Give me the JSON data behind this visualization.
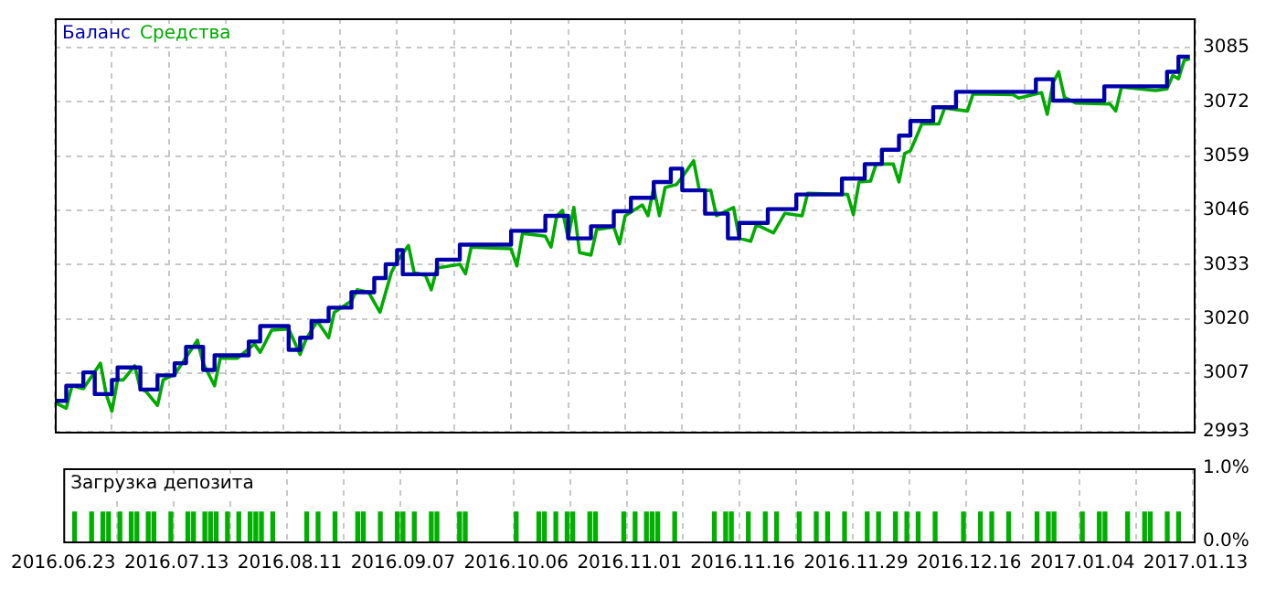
{
  "chart_data": [
    {
      "type": "line",
      "legend": "top left",
      "grid": true,
      "tick_labels": "y",
      "categories": [
        null,
        null,
        null,
        null,
        null,
        null,
        null,
        null,
        null,
        null,
        null,
        null,
        null,
        null,
        null,
        null,
        null,
        null,
        null,
        null,
        null,
        null,
        null,
        null,
        null,
        null,
        null,
        null,
        null,
        null,
        null,
        null,
        null,
        null,
        null,
        null,
        null,
        null,
        null,
        null,
        null,
        null,
        null,
        null,
        null,
        null,
        null,
        null,
        null,
        null,
        null,
        null,
        null,
        null,
        null,
        null,
        null,
        null,
        null,
        null,
        null,
        null,
        null,
        null,
        null,
        null,
        null,
        null,
        null,
        null,
        null,
        null,
        null,
        null,
        null,
        null,
        null,
        null,
        null,
        null,
        null,
        null,
        null,
        null,
        null,
        null,
        null,
        null,
        null,
        null,
        null,
        null,
        null,
        null,
        null,
        null,
        null,
        null,
        null,
        null,
        null,
        null,
        null,
        null,
        null,
        null,
        null,
        null,
        null,
        null,
        null,
        null,
        null,
        null,
        null,
        null,
        null,
        null,
        null,
        null,
        null,
        null,
        null,
        null,
        null,
        null,
        null,
        null,
        null,
        null,
        null,
        null,
        null,
        null,
        null,
        null,
        null,
        null,
        null,
        null,
        null,
        null,
        null,
        null,
        null,
        null,
        null,
        null,
        null,
        null,
        null,
        null,
        null,
        null,
        null,
        null,
        null,
        null,
        null,
        null,
        null,
        null,
        null,
        null,
        null,
        null,
        null,
        null,
        null,
        null,
        null,
        null,
        null,
        null,
        null,
        null,
        null,
        null,
        null,
        null,
        null,
        null,
        null,
        null,
        null,
        null,
        null,
        null,
        null,
        null,
        null,
        null,
        null,
        null,
        null,
        null,
        null,
        null,
        null,
        null,
        null
      ],
      "ylim": [
        2993,
        3092
      ],
      "yticks": [
        2993,
        3007,
        3020,
        3033,
        3046,
        3059,
        3072,
        3085
      ],
      "series": [
        {
          "name": "Баланс",
          "type": "step",
          "color": "#0000aa",
          "values": [
            3000.4,
            3000.4,
            3004.0,
            null,
            3004.0,
            3007.2,
            3007.2,
            3002.0,
            null,
            3002.0,
            3005.4,
            3008.4,
            null,
            null,
            3008.4,
            3003.1,
            null,
            3003.1,
            3006.5,
            null,
            3006.5,
            3009.4,
            3009.4,
            3013.3,
            null,
            3013.3,
            3007.8,
            3007.8,
            3011.3,
            null,
            null,
            null,
            null,
            3011.3,
            3014.6,
            3014.6,
            3018.3,
            null,
            null,
            null,
            3018.3,
            3012.6,
            3012.6,
            3015.5,
            3015.5,
            3019.5,
            null,
            3019.5,
            3022.7,
            null,
            null,
            3022.7,
            3026.4,
            null,
            null,
            3026.4,
            3029.8,
            3029.8,
            3033.1,
            3033.1,
            3036.5,
            3030.7,
            null,
            null,
            null,
            null,
            3030.7,
            3034.2,
            null,
            null,
            3034.2,
            3037.8,
            null,
            null,
            null,
            null,
            null,
            null,
            null,
            3037.8,
            3041.1,
            null,
            null,
            null,
            null,
            3041.1,
            3044.7,
            null,
            null,
            3044.7,
            3039.3,
            null,
            null,
            3039.3,
            3042.2,
            null,
            null,
            3042.2,
            3045.8,
            null,
            3045.8,
            3049.0,
            null,
            null,
            3049.0,
            3052.8,
            null,
            3052.8,
            3056.0,
            3056.0,
            3050.8,
            null,
            null,
            3050.8,
            3045.2,
            null,
            null,
            3045.2,
            3039.3,
            3039.3,
            3043.0,
            null,
            null,
            null,
            3043.0,
            3046.3,
            null,
            null,
            null,
            3046.3,
            3049.8,
            null,
            null,
            null,
            null,
            null,
            null,
            3049.8,
            3053.6,
            null,
            null,
            3053.6,
            3057.1,
            null,
            3057.1,
            3060.5,
            null,
            3060.5,
            3063.9,
            3063.9,
            3067.4,
            null,
            null,
            3067.4,
            3070.7,
            null,
            null,
            3070.7,
            3074.4,
            null,
            null,
            null,
            null,
            null,
            null,
            null,
            null,
            null,
            null,
            null,
            null,
            3074.4,
            3077.4,
            null,
            3077.4,
            3072.3,
            null,
            null,
            null,
            null,
            null,
            null,
            null,
            3072.3,
            3075.7,
            null,
            null,
            null,
            null,
            null,
            null,
            null,
            null,
            null,
            3075.7,
            3079.2,
            3079.2,
            3082.8,
            3082.8,
            3082.8,
            null
          ]
        },
        {
          "name": "Средства",
          "type": "line",
          "color": "#00aa00",
          "values": [
            3000.0,
            null,
            2998.6,
            3004.0,
            null,
            3003.3,
            null,
            null,
            3009.4,
            3002.0,
            2997.9,
            3005.4,
            3005.4,
            null,
            3008.8,
            3003.3,
            3002.6,
            null,
            2999.3,
            3005.4,
            null,
            3006.7,
            null,
            null,
            null,
            3014.9,
            3009.4,
            null,
            3004.0,
            3010.6,
            null,
            null,
            3010.6,
            null,
            null,
            3014.0,
            3012.0,
            null,
            3017.3,
            null,
            null,
            3017.6,
            null,
            3011.5,
            3015.0,
            null,
            3019.5,
            null,
            3015.5,
            3021.6,
            null,
            null,
            3024.3,
            3027.0,
            null,
            3026.4,
            null,
            3021.6,
            null,
            3031.1,
            3033.8,
            null,
            3037.6,
            3031.1,
            null,
            3030.4,
            3027.0,
            3032.2,
            null,
            null,
            null,
            3033.1,
            3030.8,
            3037.2,
            null,
            null,
            null,
            null,
            null,
            null,
            3036.8,
            3032.7,
            3040.5,
            null,
            null,
            null,
            3039.8,
            3037.2,
            3044.7,
            3046.0,
            3039.3,
            3046.7,
            3035.9,
            null,
            3035.3,
            3041.4,
            null,
            null,
            3042.0,
            3038.0,
            3044.7,
            null,
            null,
            3047.3,
            3044.7,
            3051.5,
            3044.7,
            3051.5,
            null,
            3052.2,
            3054.0,
            null,
            3057.9,
            3050.8,
            null,
            3050.8,
            3044.7,
            null,
            null,
            3046.7,
            3039.3,
            null,
            3038.6,
            3042.6,
            null,
            null,
            3040.6,
            null,
            3045.3,
            null,
            null,
            3044.7,
            3050.1,
            null,
            null,
            null,
            null,
            null,
            null,
            3049.8,
            3045.0,
            3052.8,
            null,
            3053.0,
            3057.1,
            null,
            null,
            3057.1,
            3052.8,
            3059.6,
            3060.3,
            3063.4,
            3066.7,
            null,
            null,
            3066.7,
            3070.5,
            null,
            null,
            null,
            3069.8,
            3073.9,
            null,
            null,
            null,
            null,
            null,
            null,
            3073.7,
            3072.9,
            null,
            null,
            null,
            3074.2,
            3069.0,
            3076.5,
            3079.2,
            3073.1,
            null,
            3071.7,
            null,
            null,
            null,
            null,
            null,
            3071.5,
            3069.8,
            3075.5,
            null,
            null,
            null,
            null,
            null,
            3074.7,
            null,
            3075.1,
            3078.3,
            3077.5,
            3081.9,
            3082.3,
            null
          ]
        }
      ]
    },
    {
      "type": "bar",
      "title": "Загрузка депозита",
      "grid": "x",
      "color": "#00b000",
      "categories": [
        "2016.06.23",
        null,
        null,
        null,
        null,
        null,
        null,
        null,
        null,
        null,
        null,
        null,
        null,
        null,
        null,
        null,
        null,
        null,
        null,
        null,
        "2016.07.13",
        null,
        null,
        null,
        null,
        null,
        null,
        null,
        null,
        null,
        null,
        null,
        null,
        null,
        null,
        null,
        null,
        null,
        null,
        null,
        "2016.08.11",
        null,
        null,
        null,
        null,
        null,
        null,
        null,
        null,
        null,
        null,
        null,
        null,
        null,
        null,
        null,
        null,
        null,
        null,
        null,
        "2016.09.07",
        null,
        null,
        null,
        null,
        null,
        null,
        null,
        null,
        null,
        null,
        null,
        null,
        null,
        null,
        null,
        null,
        null,
        null,
        null,
        "2016.10.06",
        null,
        null,
        null,
        null,
        null,
        null,
        null,
        null,
        null,
        null,
        null,
        null,
        null,
        null,
        null,
        null,
        null,
        null,
        null,
        "2016.11.01",
        null,
        null,
        null,
        null,
        null,
        null,
        null,
        null,
        null,
        null,
        null,
        null,
        null,
        null,
        null,
        null,
        null,
        null,
        null,
        "2016.11.16",
        null,
        null,
        null,
        null,
        null,
        null,
        null,
        null,
        null,
        null,
        null,
        null,
        null,
        null,
        null,
        null,
        null,
        null,
        null,
        "2016.11.29",
        null,
        null,
        null,
        null,
        null,
        null,
        null,
        null,
        null,
        null,
        null,
        null,
        null,
        null,
        null,
        null,
        null,
        null,
        null,
        "2016.12.16",
        null,
        null,
        null,
        null,
        null,
        null,
        null,
        null,
        null,
        null,
        null,
        null,
        null,
        null,
        null,
        null,
        null,
        null,
        null,
        "2017.01.04",
        null,
        null,
        null,
        null,
        null,
        null,
        null,
        null,
        null,
        null,
        null,
        null,
        null,
        null,
        null,
        null,
        null,
        null,
        null,
        "2017.01.13"
      ],
      "ylim": [
        0,
        1
      ],
      "yticks": [
        {
          "value": 0,
          "label": "0.0%"
        },
        {
          "value": 1,
          "label": "1.0%"
        }
      ],
      "values": [
        null,
        null,
        0.4,
        null,
        null,
        0.4,
        null,
        0.4,
        0.4,
        null,
        0.4,
        null,
        0.4,
        0.4,
        null,
        0.4,
        0.4,
        null,
        null,
        0.4,
        null,
        null,
        0.4,
        0.4,
        null,
        0.4,
        0.4,
        0.4,
        null,
        0.4,
        null,
        0.4,
        null,
        0.4,
        0.4,
        0.4,
        null,
        0.4,
        null,
        null,
        null,
        null,
        null,
        0.4,
        null,
        0.4,
        null,
        null,
        0.4,
        null,
        null,
        null,
        0.4,
        0.4,
        null,
        null,
        0.4,
        null,
        null,
        0.4,
        0.4,
        null,
        0.4,
        null,
        null,
        0.4,
        0.4,
        null,
        null,
        null,
        0.4,
        0.4,
        null,
        null,
        null,
        null,
        null,
        null,
        null,
        null,
        0.4,
        null,
        null,
        null,
        0.4,
        0.4,
        null,
        0.4,
        null,
        0.4,
        0.4,
        null,
        null,
        0.4,
        0.4,
        null,
        null,
        null,
        null,
        0.4,
        null,
        0.4,
        null,
        0.4,
        0.4,
        0.4,
        null,
        null,
        0.4,
        null,
        null,
        null,
        null,
        null,
        null,
        0.4,
        null,
        0.4,
        0.4,
        null,
        null,
        0.4,
        null,
        null,
        0.4,
        null,
        0.4,
        null,
        null,
        null,
        0.4,
        null,
        null,
        0.4,
        null,
        0.4,
        null,
        null,
        0.4,
        null,
        null,
        null,
        0.4,
        null,
        0.4,
        null,
        null,
        0.4,
        null,
        0.4,
        null,
        0.4,
        null,
        null,
        0.4,
        null,
        null,
        null,
        null,
        0.4,
        null,
        null,
        0.4,
        null,
        0.4,
        null,
        null,
        0.4,
        null,
        null,
        null,
        null,
        0.4,
        null,
        0.4,
        0.4,
        null,
        null,
        null,
        null,
        0.4,
        null,
        null,
        0.4,
        0.4,
        null,
        null,
        null,
        0.4,
        null,
        null,
        0.4,
        0.4,
        null,
        null,
        0.4,
        null,
        0.4,
        null,
        null,
        null
      ]
    }
  ]
}
